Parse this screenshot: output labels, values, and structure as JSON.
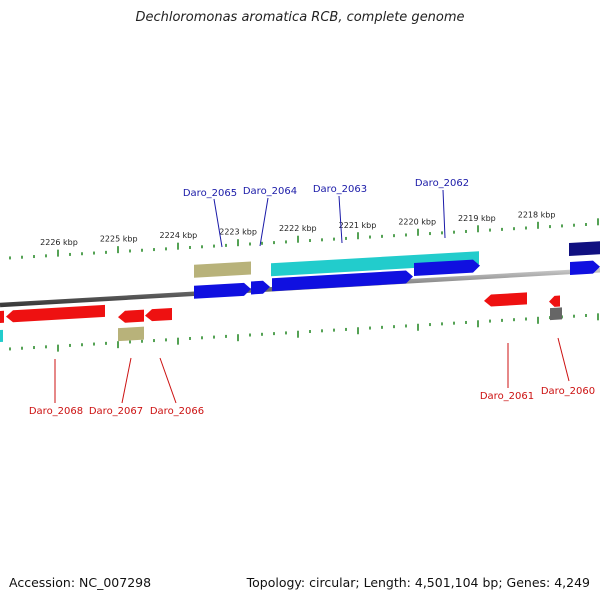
{
  "title": "Dechloromonas aromatica RCB, complete genome",
  "footer": {
    "accession": "Accession: NC_007298",
    "topology": "Topology: circular; Length: 4,501,104 bp; Genes: 4,249"
  },
  "colors": {
    "plus_gene": "#1010e0",
    "minus_gene": "#ee1111",
    "cyan_feature": "#22cccc",
    "olive_feature": "#b8b27a",
    "navy_feature": "#101080",
    "grey_feature": "#666666",
    "tick": "#2a8a2a",
    "plus_label": "#1a1aa8",
    "minus_label": "#cc1111"
  },
  "scale": {
    "ticks": [
      "2226 kbp",
      "2225 kbp",
      "2224 kbp",
      "2223 kbp",
      "2222 kbp",
      "2221 kbp",
      "2220 kbp",
      "2219 kbp",
      "2218 kbp"
    ]
  },
  "gene_labels": {
    "plus": [
      "Daro_2065",
      "Daro_2064",
      "Daro_2063",
      "Daro_2062"
    ],
    "minus": [
      "Daro_2068",
      "Daro_2067",
      "Daro_2066",
      "Daro_2061",
      "Daro_2060"
    ]
  }
}
